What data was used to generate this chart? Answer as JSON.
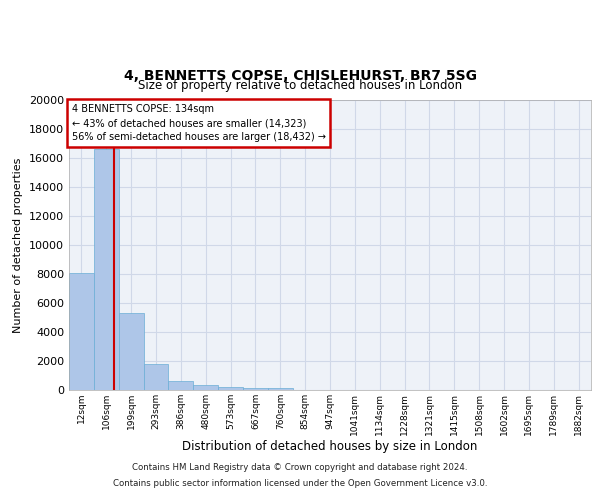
{
  "title_line1": "4, BENNETTS COPSE, CHISLEHURST, BR7 5SG",
  "title_line2": "Size of property relative to detached houses in London",
  "xlabel": "Distribution of detached houses by size in London",
  "ylabel": "Number of detached properties",
  "categories": [
    "12sqm",
    "106sqm",
    "199sqm",
    "293sqm",
    "386sqm",
    "480sqm",
    "573sqm",
    "667sqm",
    "760sqm",
    "854sqm",
    "947sqm",
    "1041sqm",
    "1134sqm",
    "1228sqm",
    "1321sqm",
    "1415sqm",
    "1508sqm",
    "1602sqm",
    "1695sqm",
    "1789sqm",
    "1882sqm"
  ],
  "values": [
    8100,
    16600,
    5300,
    1800,
    650,
    320,
    180,
    160,
    130,
    0,
    0,
    0,
    0,
    0,
    0,
    0,
    0,
    0,
    0,
    0,
    0
  ],
  "bar_color": "#aec6e8",
  "bar_edge_color": "#6aaed6",
  "vline_x": 1.3,
  "vline_color": "#cc0000",
  "annotation_title": "4 BENNETTS COPSE: 134sqm",
  "annotation_line1": "← 43% of detached houses are smaller (14,323)",
  "annotation_line2": "56% of semi-detached houses are larger (18,432) →",
  "annotation_box_color": "#ffffff",
  "annotation_box_edge": "#cc0000",
  "ylim": [
    0,
    20000
  ],
  "yticks": [
    0,
    2000,
    4000,
    6000,
    8000,
    10000,
    12000,
    14000,
    16000,
    18000,
    20000
  ],
  "grid_color": "#d0d8e8",
  "bg_color": "#eef2f8",
  "footer_line1": "Contains HM Land Registry data © Crown copyright and database right 2024.",
  "footer_line2": "Contains public sector information licensed under the Open Government Licence v3.0."
}
